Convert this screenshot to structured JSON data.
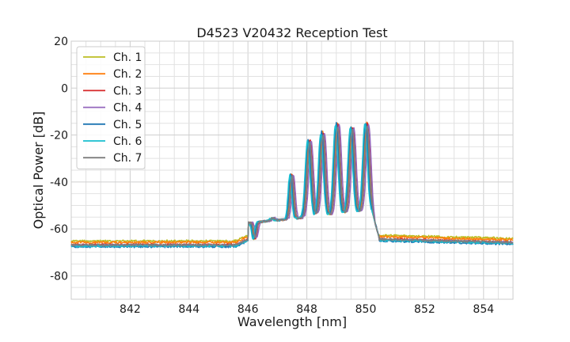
{
  "chart_data": {
    "type": "line",
    "title": "D4523 V20432 Reception Test",
    "xlabel": "Wavelength [nm]",
    "ylabel": "Optical Power [dB]",
    "xlim": [
      840,
      855
    ],
    "ylim": [
      -90,
      20
    ],
    "xticks": [
      842,
      844,
      846,
      848,
      850,
      852,
      854
    ],
    "yticks": [
      20,
      0,
      -20,
      -40,
      -60,
      -80
    ],
    "grid": true,
    "legend_position": "top-left",
    "series": [
      {
        "name": "Ch. 1",
        "color": "#bcbd22",
        "baseline": -65.2,
        "offset": 0.0,
        "scale": 0.98
      },
      {
        "name": "Ch. 2",
        "color": "#ff7f0e",
        "baseline": -65.8,
        "offset": 0.03,
        "scale": 1.0
      },
      {
        "name": "Ch. 3",
        "color": "#d62728",
        "baseline": -66.8,
        "offset": 0.06,
        "scale": 0.99
      },
      {
        "name": "Ch. 4",
        "color": "#9467bd",
        "baseline": -67.0,
        "offset": 0.1,
        "scale": 0.97
      },
      {
        "name": "Ch. 5",
        "color": "#1f77b4",
        "baseline": -67.6,
        "offset": 0.0,
        "scale": 1.0
      },
      {
        "name": "Ch. 6",
        "color": "#17becf",
        "baseline": -67.3,
        "offset": -0.03,
        "scale": 0.98
      },
      {
        "name": "Ch. 7",
        "color": "#7f7f7f",
        "baseline": -66.9,
        "offset": 0.05,
        "scale": 0.96
      }
    ],
    "peaks": [
      {
        "x": 846.2,
        "y": -62,
        "w": 0.05
      },
      {
        "x": 846.8,
        "y": -54,
        "w": 0.06
      },
      {
        "x": 847.45,
        "y": -36,
        "w": 0.06
      },
      {
        "x": 848.05,
        "y": -22,
        "w": 0.08
      },
      {
        "x": 848.5,
        "y": -19,
        "w": 0.08
      },
      {
        "x": 849.0,
        "y": -16,
        "w": 0.08
      },
      {
        "x": 849.5,
        "y": -18,
        "w": 0.08
      },
      {
        "x": 850.0,
        "y": -17,
        "w": 0.08
      }
    ],
    "plateau": {
      "start": 846.0,
      "end": 850.2,
      "level": -55
    },
    "post_edge_level": -63.5
  }
}
